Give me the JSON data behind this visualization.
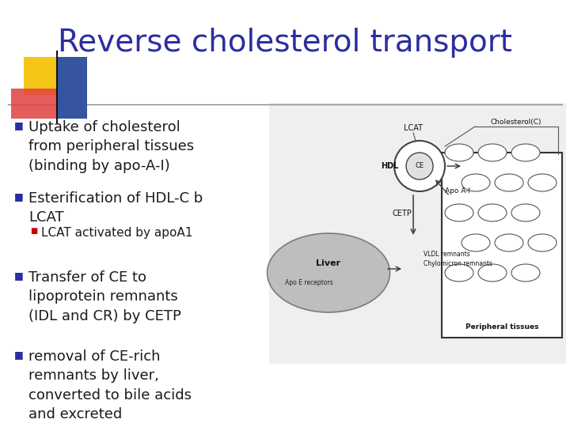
{
  "title": "Reverse cholesterol transport",
  "title_color": "#2B2EA0",
  "title_fontsize": 28,
  "background_color": "#FFFFFF",
  "bullet_color": "#1A1A1A",
  "bullet_marker_color": "#2B2EA0",
  "bullet_fontsize": 13,
  "sub_bullet_fontsize": 11,
  "sub_bullet_color": "#CC0000",
  "bullets": [
    "Uptake of cholesterol\nfrom peripheral tissues\n(binding by apo-A-I)",
    "Esterification of HDL-C b\nLCAT",
    "Transfer of CE to\nlipoprotein remnants\n(IDL and CR) by CETP",
    "removal of CE-rich\nremnants by liver,\nconverted to bile acids\nand excreted"
  ],
  "sub_bullets": [
    "LCAT activated by apoA1"
  ],
  "line_color": "#888888",
  "diag_bg": "#EFEFEF"
}
